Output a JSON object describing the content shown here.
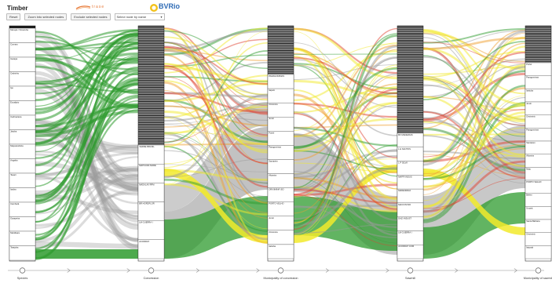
{
  "app": {
    "title": "Timber",
    "logos": {
      "trase": "trase",
      "bv": "BVRio"
    }
  },
  "toolbar": {
    "reset": "Reset",
    "zoom": "Zoom into selected nodes",
    "exclude": "Exclude selected nodes",
    "select_placeholder": "Select node by name"
  },
  "colors": {
    "green": "#2e9b2e",
    "gray": "#9a9a9a",
    "yellow": "#f2ea2b",
    "red": "#e0412f",
    "orange": "#f0a030"
  },
  "axes": [
    {
      "name": "Species",
      "nodes": [
        {
          "label": "Marupá / Simaruba"
        },
        {
          "label": "Cumaru"
        },
        {
          "label": "Garapa"
        },
        {
          "label": "Cedrinho"
        },
        {
          "label": "Ipe"
        },
        {
          "label": "Eucalipto"
        },
        {
          "label": "Cedroarana"
        },
        {
          "label": "Jatoba"
        },
        {
          "label": "Maçaranduba"
        },
        {
          "label": "Angelim"
        },
        {
          "label": "Tauari"
        },
        {
          "label": "Itaúba"
        },
        {
          "label": "Cambará"
        },
        {
          "label": "Garapeira"
        },
        {
          "label": "Manilkara"
        },
        {
          "label": "Tatajuba"
        }
      ]
    },
    {
      "name": "Concession",
      "nodes": [
        {
          "label": "VERDE BRASIL"
        },
        {
          "label": "MAPUANA MADE"
        },
        {
          "label": "MADALAV RPM"
        },
        {
          "label": "BR HORDFLOR"
        },
        {
          "label": "LM GUERRA I"
        },
        {
          "label": "ACORDAT"
        }
      ]
    },
    {
      "name": "Municipality of concession",
      "nodes": [
        {
          "label": "PARAGOMINAS"
        },
        {
          "label": "Itapuã"
        },
        {
          "label": "Oriximiná"
        },
        {
          "label": "Juruti"
        },
        {
          "label": "Portel"
        },
        {
          "label": "Paragominas"
        },
        {
          "label": "Santarém"
        },
        {
          "label": "Altamira"
        },
        {
          "label": "ORIXIMINÁ ISO"
        },
        {
          "label": "PORTO VELHO"
        },
        {
          "label": "Juruti"
        },
        {
          "label": "Oriximiná"
        },
        {
          "label": "Itaituba"
        }
      ]
    },
    {
      "name": "Sawmill",
      "nodes": [
        {
          "label": "BV MADEIRAS"
        },
        {
          "label": "L E SANTOS"
        },
        {
          "label": "L P SILVA"
        },
        {
          "label": "MAPPI INDUS"
        },
        {
          "label": "MADEIRANA"
        },
        {
          "label": "MACCIN IND"
        },
        {
          "label": "DAZI INDUST"
        },
        {
          "label": "LM GUERRA I"
        },
        {
          "label": "ACORDAT COM"
        }
      ]
    },
    {
      "name": "Municipality of sawmill",
      "nodes": [
        {
          "label": "Portel"
        },
        {
          "label": "Paragominas"
        },
        {
          "label": "Itaituba"
        },
        {
          "label": "Juruti"
        },
        {
          "label": "Oriximiná"
        },
        {
          "label": "Paragominas"
        },
        {
          "label": "Santarém"
        },
        {
          "label": "Altamira"
        },
        {
          "label": "Moju"
        },
        {
          "label": "PORTO VELHO"
        },
        {
          "label": "Belém"
        },
        {
          "label": "Uruará"
        },
        {
          "label": "Santa Bárbara"
        },
        {
          "label": "Oriximiná"
        },
        {
          "label": "Itajuatá"
        }
      ]
    }
  ]
}
